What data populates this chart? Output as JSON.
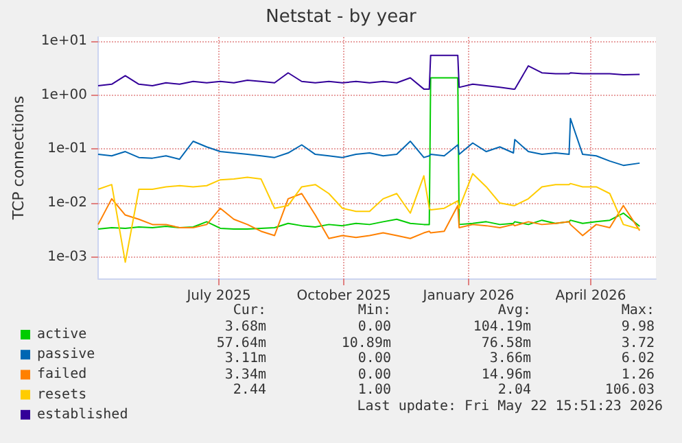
{
  "chart_data": {
    "type": "line",
    "title": "Netstat - by year",
    "ylabel": "TCP connections",
    "x": [
      "2025-04-18",
      "2025-04-28",
      "2025-05-08",
      "2025-05-18",
      "2025-05-28",
      "2025-06-07",
      "2025-06-17",
      "2025-06-27",
      "2025-07-07",
      "2025-07-17",
      "2025-07-27",
      "2025-08-06",
      "2025-08-16",
      "2025-08-26",
      "2025-09-05",
      "2025-09-15",
      "2025-09-25",
      "2025-10-05",
      "2025-10-15",
      "2025-10-25",
      "2025-11-04",
      "2025-11-14",
      "2025-11-24",
      "2025-12-04",
      "2025-12-14",
      "2025-12-18",
      "2025-12-19",
      "2025-12-29",
      "2026-01-08",
      "2026-01-09",
      "2026-01-19",
      "2026-01-29",
      "2026-02-08",
      "2026-02-18",
      "2026-02-19",
      "2026-03-01",
      "2026-03-11",
      "2026-03-21",
      "2026-03-31",
      "2026-04-01",
      "2026-04-10",
      "2026-04-20",
      "2026-04-30",
      "2026-05-10",
      "2026-05-22"
    ],
    "series": [
      {
        "name": "active",
        "color": "#00cc00",
        "values": [
          0.0033,
          0.0035,
          0.0034,
          0.0036,
          0.0035,
          0.0037,
          0.0035,
          0.0036,
          0.0045,
          0.0034,
          0.0033,
          0.0033,
          0.0034,
          0.0035,
          0.0042,
          0.0038,
          0.0036,
          0.004,
          0.0038,
          0.0042,
          0.004,
          0.0045,
          0.005,
          0.0042,
          0.004,
          0.004,
          2.1,
          2.1,
          2.1,
          0.004,
          0.0042,
          0.0045,
          0.004,
          0.0042,
          0.0045,
          0.004,
          0.0048,
          0.0042,
          0.0045,
          0.0048,
          0.0042,
          0.0045,
          0.0048,
          0.0065,
          0.0037
        ]
      },
      {
        "name": "passive",
        "color": "#0066b3",
        "values": [
          0.08,
          0.075,
          0.09,
          0.07,
          0.068,
          0.075,
          0.065,
          0.14,
          0.11,
          0.09,
          0.085,
          0.08,
          0.075,
          0.07,
          0.085,
          0.12,
          0.08,
          0.075,
          0.07,
          0.08,
          0.085,
          0.075,
          0.08,
          0.14,
          0.07,
          0.075,
          0.08,
          0.075,
          0.12,
          0.08,
          0.13,
          0.09,
          0.11,
          0.085,
          0.15,
          0.09,
          0.08,
          0.085,
          0.08,
          0.37,
          0.08,
          0.075,
          0.06,
          0.05,
          0.055
        ]
      },
      {
        "name": "failed",
        "color": "#ff8000",
        "values": [
          0.004,
          0.012,
          0.006,
          0.005,
          0.004,
          0.004,
          0.0035,
          0.0035,
          0.004,
          0.008,
          0.005,
          0.004,
          0.003,
          0.0025,
          0.012,
          0.015,
          0.006,
          0.0022,
          0.0025,
          0.0023,
          0.0025,
          0.0028,
          0.0025,
          0.0022,
          0.0028,
          0.003,
          0.0028,
          0.003,
          0.009,
          0.0035,
          0.004,
          0.0038,
          0.0035,
          0.004,
          0.0038,
          0.0045,
          0.004,
          0.0042,
          0.0045,
          0.004,
          0.0025,
          0.004,
          0.0035,
          0.009,
          0.0031
        ]
      },
      {
        "name": "resets",
        "color": "#ffcc00",
        "values": [
          0.018,
          0.022,
          0.0008,
          0.018,
          0.018,
          0.02,
          0.021,
          0.02,
          0.021,
          0.027,
          0.028,
          0.03,
          0.028,
          0.008,
          0.009,
          0.02,
          0.022,
          0.015,
          0.008,
          0.007,
          0.007,
          0.012,
          0.015,
          0.0065,
          0.032,
          0.008,
          0.0075,
          0.008,
          0.011,
          0.008,
          0.035,
          0.02,
          0.01,
          0.009,
          0.009,
          0.012,
          0.02,
          0.022,
          0.022,
          0.023,
          0.02,
          0.02,
          0.015,
          0.004,
          0.0033
        ]
      },
      {
        "name": "established",
        "color": "#330099",
        "values": [
          1.5,
          1.6,
          2.3,
          1.6,
          1.5,
          1.7,
          1.6,
          1.8,
          1.7,
          1.8,
          1.7,
          1.9,
          1.8,
          1.7,
          2.6,
          1.8,
          1.7,
          1.8,
          1.7,
          1.8,
          1.7,
          1.8,
          1.7,
          2.1,
          1.3,
          1.3,
          5.5,
          5.5,
          5.5,
          1.4,
          1.6,
          1.5,
          1.4,
          1.3,
          1.3,
          3.5,
          2.6,
          2.5,
          2.5,
          2.6,
          2.5,
          2.5,
          2.5,
          2.4,
          2.44
        ]
      }
    ],
    "xlim": [
      "2025-04-18",
      "2026-06-03"
    ],
    "xticks": [
      {
        "value": "2025-07-16",
        "label": "July 2025"
      },
      {
        "value": "2025-10-16",
        "label": "October 2025"
      },
      {
        "value": "2026-01-16",
        "label": "January 2026"
      },
      {
        "value": "2026-04-16",
        "label": "April 2026"
      }
    ],
    "ylim": [
      0.0004,
      12
    ],
    "yticks": [
      {
        "value": 0.001,
        "label": "1e-03"
      },
      {
        "value": 0.01,
        "label": "1e-02"
      },
      {
        "value": 0.1,
        "label": "1e-01"
      },
      {
        "value": 1,
        "label": "1e+00"
      },
      {
        "value": 10,
        "label": "1e+01"
      }
    ],
    "log": true,
    "grid": true,
    "legend": "bottom left",
    "marker": "none",
    "line_style": "solid",
    "annotations": [
      "Cur:",
      "Min:",
      "Avg:",
      "Max:",
      "3.68m",
      "0.00",
      "104.19m",
      "9.98",
      "57.64m",
      "10.89m",
      "76.58m",
      "3.72",
      "3.11m",
      "0.00",
      "3.66m",
      "6.02",
      "3.34m",
      "0.00",
      "14.96m",
      "1.26",
      "2.44",
      "1.00",
      "2.04",
      "106.03",
      "Last update: Fri May 22 15:51:23 2026"
    ]
  }
}
